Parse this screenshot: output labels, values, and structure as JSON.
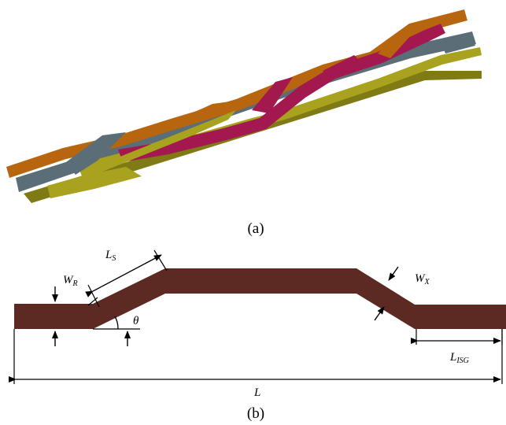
{
  "colors": {
    "background": "#ffffff",
    "strand_orange": "#b8650f",
    "strand_orange_dark": "#8a4a0b",
    "strand_slate": "#5b6e78",
    "strand_slate_dark": "#3f4e56",
    "strand_olive": "#a8a21e",
    "strand_olive_dark": "#7f7a13",
    "strand_magenta": "#a3184f",
    "strand_magenta_dark": "#7a1038",
    "conductor_brown": "#5c2a23",
    "dimension_line": "#000000"
  },
  "panel_a": {
    "caption": "(a)",
    "strands": [
      "strand_orange",
      "strand_slate",
      "strand_olive",
      "strand_magenta"
    ]
  },
  "panel_b": {
    "caption": "(b)",
    "labels": {
      "wr": {
        "main": "W",
        "sub": "R"
      },
      "ls": {
        "main": "L",
        "sub": "S"
      },
      "theta": {
        "main": "θ"
      },
      "wx": {
        "main": "W",
        "sub": "X"
      },
      "lisg": {
        "main": "L",
        "sub": "ISG"
      },
      "l": {
        "main": "L"
      }
    }
  }
}
